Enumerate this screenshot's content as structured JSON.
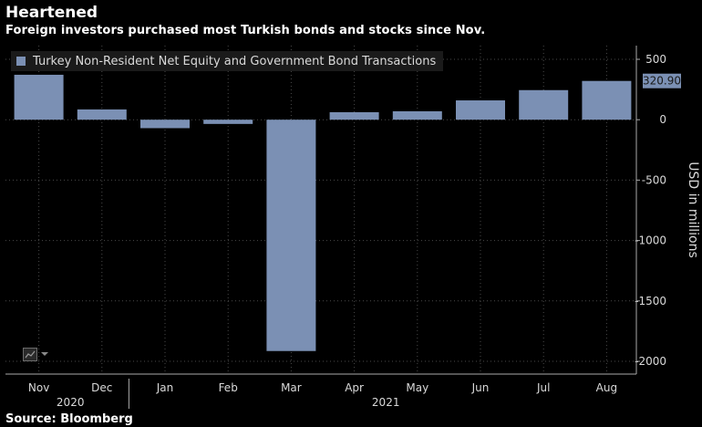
{
  "header": {
    "title": "Heartened",
    "subtitle": "Foreign investors purchased most Turkish bonds and stocks since Nov."
  },
  "footer": {
    "source": "Source: Bloomberg"
  },
  "colors": {
    "bar": "#7b90b4",
    "grid": "#4a4a4a",
    "text": "#d9d9d9",
    "background": "#000000",
    "label_box": "#7b90b4"
  },
  "chart_data": {
    "type": "bar",
    "title": "Heartened",
    "legend": [
      "Turkey Non-Resident Net Equity and Government Bond Transactions"
    ],
    "legend_position": "top-left",
    "categories": [
      "Nov",
      "Dec",
      "Jan",
      "Feb",
      "Mar",
      "Apr",
      "May",
      "Jun",
      "Jul",
      "Aug"
    ],
    "year_labels": [
      {
        "label": "2020",
        "start": 0,
        "end": 1
      },
      {
        "label": "2021",
        "start": 2,
        "end": 9
      }
    ],
    "series": [
      {
        "name": "Turkey Non-Resident Net Equity and Government Bond Transactions",
        "values": [
          372,
          85,
          -70,
          -35,
          -1915,
          62,
          70,
          160,
          245,
          320.9
        ]
      }
    ],
    "ylabel": "USD in millions",
    "ylim": [
      -2000,
      500
    ],
    "yticks": [
      500,
      0,
      -500,
      -1000,
      -1500,
      -2000
    ],
    "y_axis_side": "right",
    "last_value_label": "320.90",
    "grid": true
  }
}
